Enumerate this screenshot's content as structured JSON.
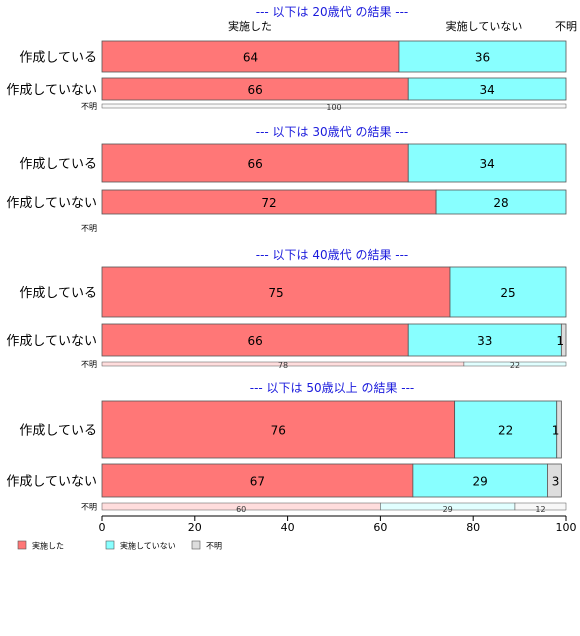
{
  "chart_data": {
    "type": "bar",
    "orientation": "horizontal",
    "stacked": "100%",
    "xlim": [
      0,
      100
    ],
    "x_ticks": [
      "0",
      "20",
      "40",
      "60",
      "80",
      "100"
    ],
    "column_headers": [
      "実施した",
      "実施していない",
      "不明"
    ],
    "colors": {
      "実施した": "#ff7777",
      "実施していない": "#88ffff",
      "不明": "#dddddd"
    },
    "legend": {
      "placement": "bottom-left",
      "entries": [
        "実施した",
        "実施していない",
        "不明"
      ]
    },
    "groups": [
      {
        "title": "--- 以下は 20歳代 の結果 ---",
        "rows": [
          {
            "label": "作成している",
            "values": [
              64,
              36,
              0
            ],
            "labels": [
              "64",
              "36",
              ""
            ]
          },
          {
            "label": "作成していない",
            "values": [
              66,
              34,
              0
            ],
            "labels": [
              "66",
              "34",
              ""
            ]
          },
          {
            "label": "不明",
            "small": true,
            "values": [
              0,
              0,
              100
            ],
            "labels": [
              "",
              "",
              "100"
            ]
          }
        ]
      },
      {
        "title": "--- 以下は 30歳代 の結果 ---",
        "rows": [
          {
            "label": "作成している",
            "values": [
              66,
              34,
              0
            ],
            "labels": [
              "66",
              "34",
              ""
            ]
          },
          {
            "label": "作成していない",
            "values": [
              72,
              28,
              0
            ],
            "labels": [
              "72",
              "28",
              ""
            ]
          },
          {
            "label": "不明",
            "small": true,
            "values": [
              0,
              0,
              0
            ],
            "labels": [
              "",
              "",
              ""
            ]
          }
        ]
      },
      {
        "title": "--- 以下は 40歳代 の結果 ---",
        "rows": [
          {
            "label": "作成している",
            "values": [
              75,
              25,
              0
            ],
            "labels": [
              "75",
              "25",
              ""
            ]
          },
          {
            "label": "作成していない",
            "values": [
              66,
              33,
              1
            ],
            "labels": [
              "66",
              "33",
              "1"
            ]
          },
          {
            "label": "不明",
            "small": true,
            "values": [
              78,
              22,
              0
            ],
            "labels": [
              "78",
              "22",
              ""
            ]
          }
        ]
      },
      {
        "title": "--- 以下は 50歳以上 の結果 ---",
        "rows": [
          {
            "label": "作成している",
            "values": [
              76,
              22,
              1
            ],
            "labels": [
              "76",
              "22",
              "1"
            ]
          },
          {
            "label": "作成していない",
            "values": [
              67,
              29,
              3
            ],
            "labels": [
              "67",
              "29",
              "3"
            ]
          },
          {
            "label": "不明",
            "small": true,
            "values": [
              60,
              29,
              12
            ],
            "labels": [
              "60",
              "29",
              "12"
            ]
          }
        ]
      }
    ]
  }
}
